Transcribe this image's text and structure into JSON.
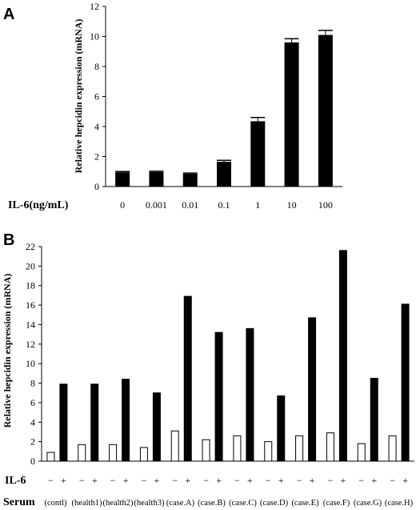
{
  "chart_data": [
    {
      "type": "bar",
      "panel": "A",
      "ylabel": "Relative hepcidin expression (mRNA)",
      "xlabel": "IL-6(ng/mL)",
      "categories": [
        "0",
        "0.001",
        "0.01",
        "0.1",
        "1",
        "10",
        "100"
      ],
      "values": [
        0.95,
        0.97,
        0.85,
        1.65,
        4.35,
        9.6,
        10.1
      ],
      "errors": [
        0.05,
        0.05,
        0.05,
        0.1,
        0.25,
        0.25,
        0.3
      ],
      "ylim": [
        0,
        12
      ],
      "yticks": [
        0,
        2,
        4,
        6,
        8,
        10,
        12
      ],
      "bar_color": "#000000",
      "grid": false
    },
    {
      "type": "bar",
      "panel": "B",
      "ylabel": "Relative hepcidin expression (mRNA)",
      "ylim": [
        0,
        22
      ],
      "yticks": [
        0,
        2,
        4,
        6,
        8,
        10,
        12,
        14,
        16,
        18,
        20,
        22
      ],
      "row_labels": {
        "il6": "IL-6",
        "serum": "Serum"
      },
      "il6_marks": [
        "−",
        "+"
      ],
      "categories": [
        "(contl)",
        "(health1)",
        "(health2)",
        "(health3)",
        "(case.A)",
        "(case.B)",
        "(case.C)",
        "(case.D)",
        "(case.E)",
        "(case.F)",
        "(case.G)",
        "(case.H)"
      ],
      "series": [
        {
          "name": "−",
          "color": "#ffffff",
          "values": [
            0.9,
            1.7,
            1.7,
            1.4,
            3.1,
            2.2,
            2.6,
            2.0,
            2.6,
            2.9,
            1.8,
            2.6
          ]
        },
        {
          "name": "+",
          "color": "#000000",
          "values": [
            7.9,
            7.9,
            8.4,
            7.0,
            16.9,
            13.2,
            13.6,
            6.7,
            14.7,
            21.6,
            8.5,
            16.1
          ]
        }
      ],
      "grid": false
    }
  ]
}
